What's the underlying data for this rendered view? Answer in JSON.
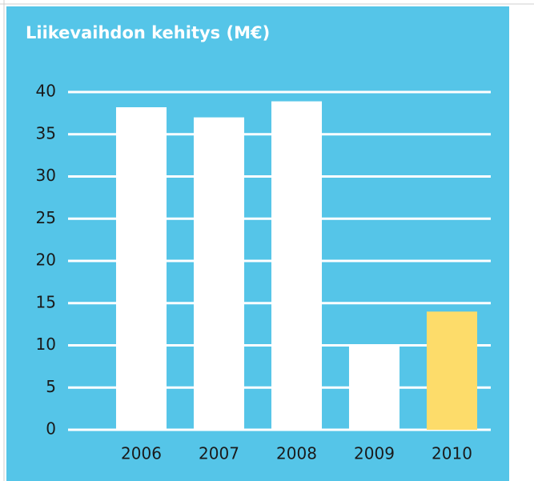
{
  "chart_data": {
    "type": "bar",
    "title": "Liikevaihdon kehitys (M€)",
    "categories": [
      "2006",
      "2007",
      "2008",
      "2009",
      "2010"
    ],
    "values": [
      38.2,
      37,
      38.9,
      10,
      14
    ],
    "colors": [
      "#ffffff",
      "#ffffff",
      "#ffffff",
      "#ffffff",
      "#fddc6a"
    ],
    "ylim": [
      0,
      40
    ],
    "yticks": [
      0,
      5,
      10,
      15,
      20,
      25,
      30,
      35,
      40
    ],
    "grid": true
  }
}
